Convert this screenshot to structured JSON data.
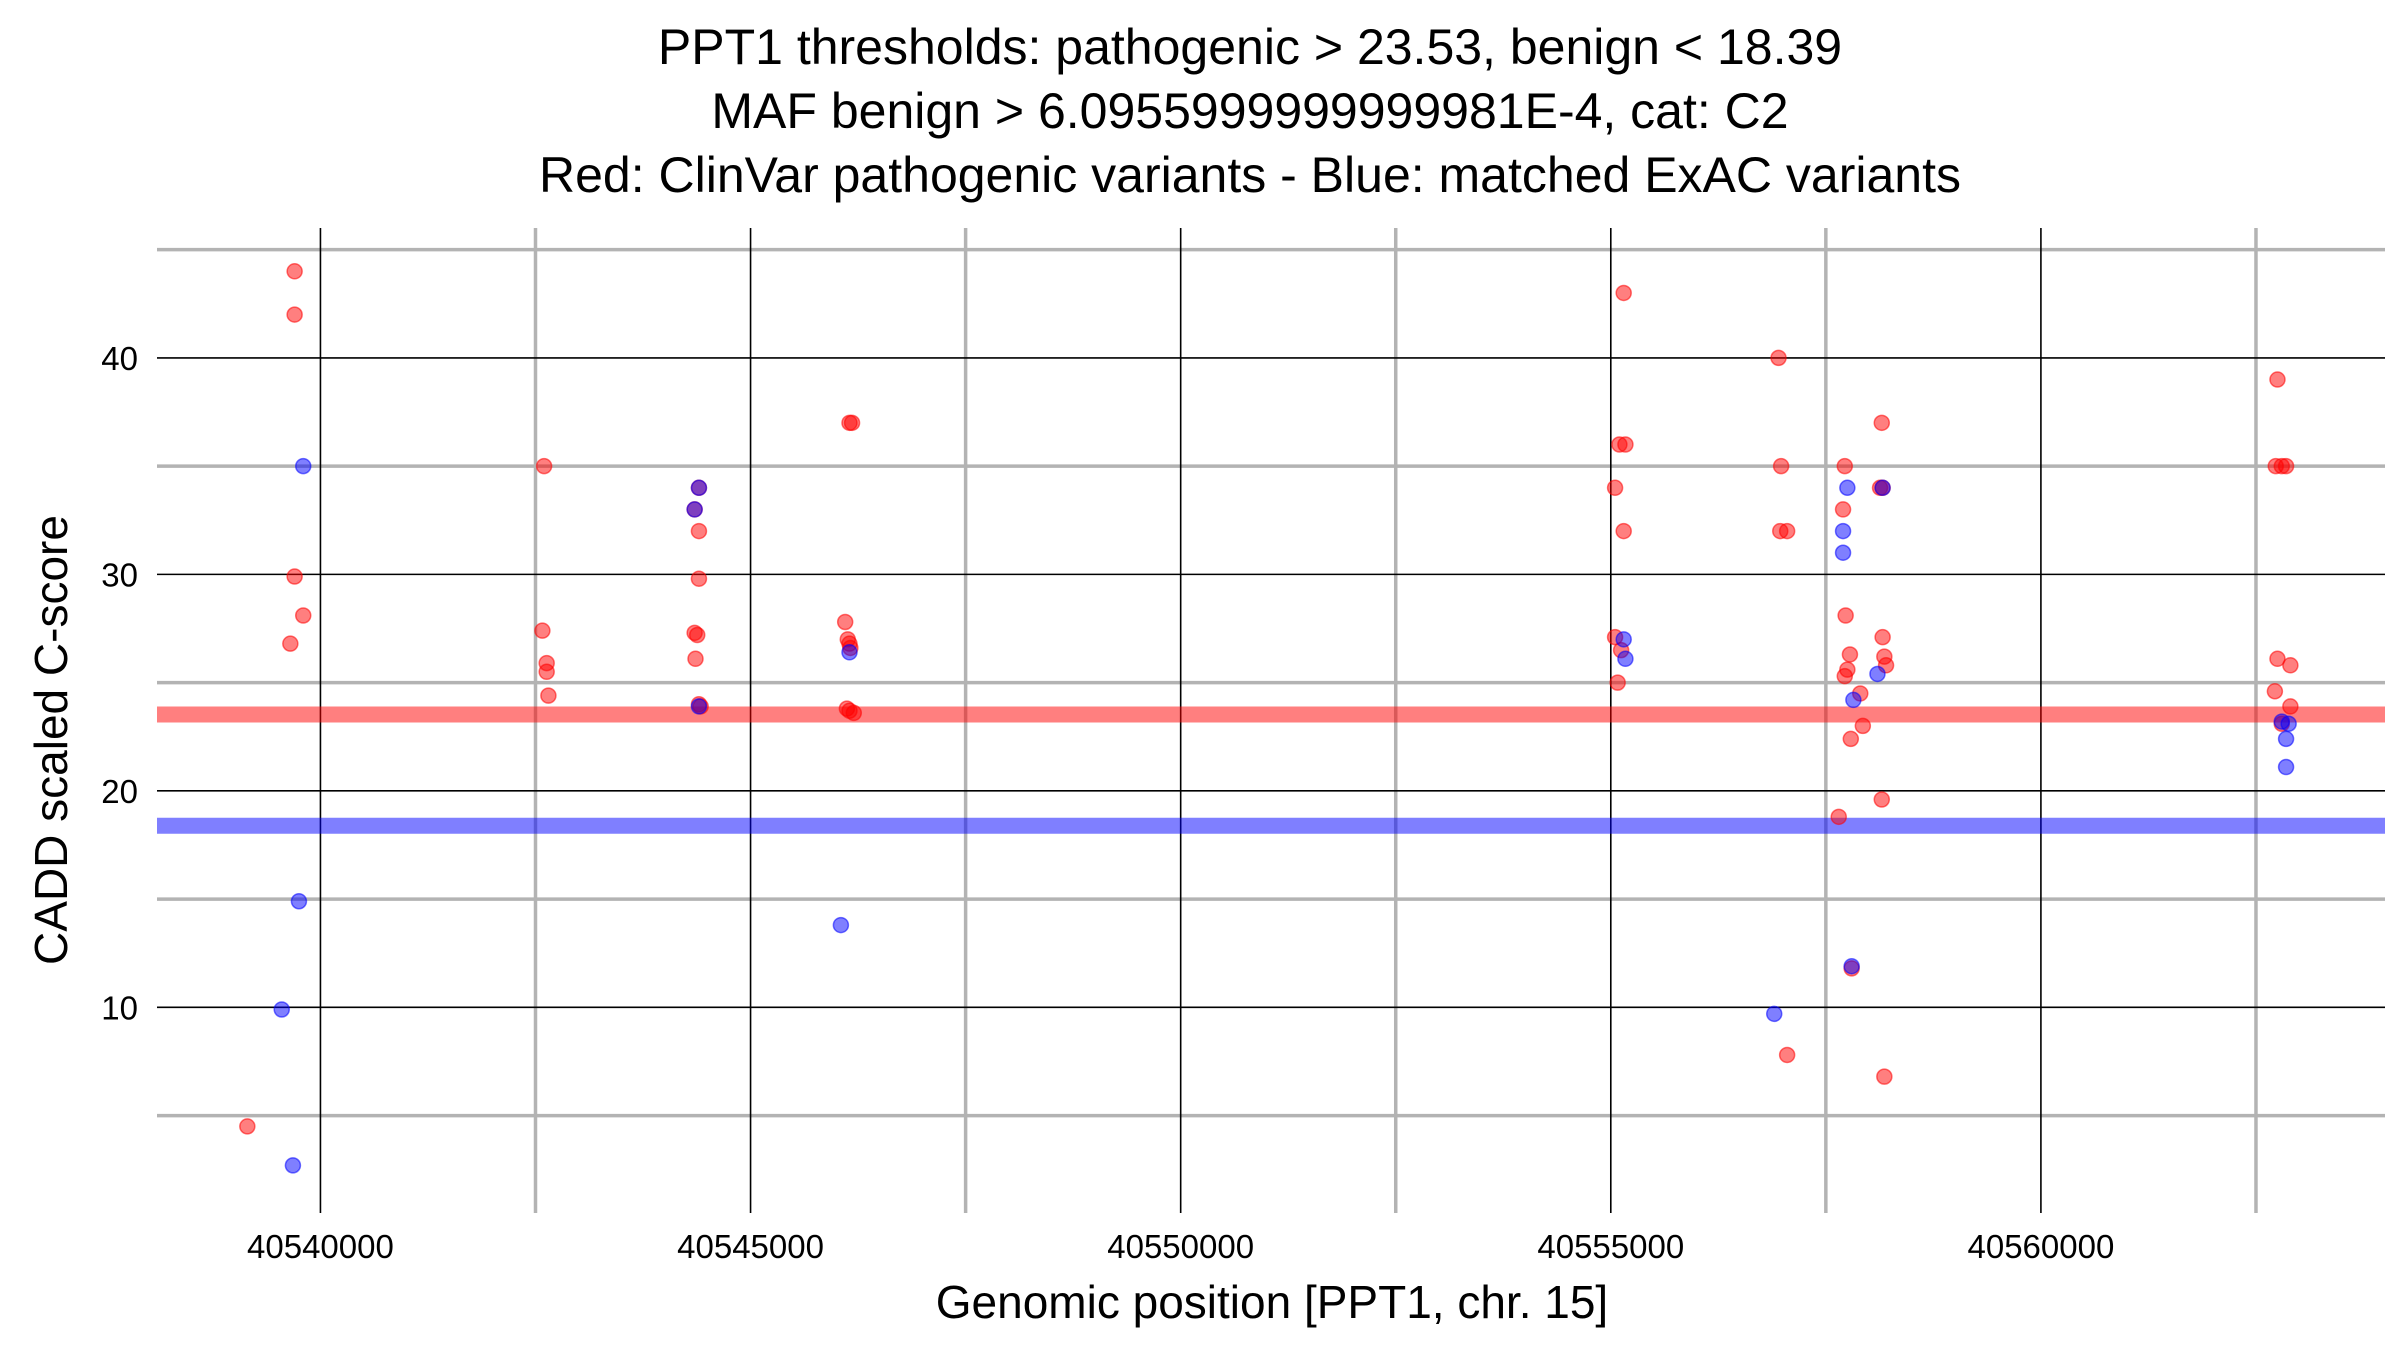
{
  "chart_data": {
    "type": "scatter",
    "title": [
      "PPT1 thresholds: pathogenic > 23.53, benign < 18.39",
      "MAF benign > 6.0955999999999981E-4, cat: C2",
      "Red: ClinVar pathogenic variants - Blue: matched ExAC variants"
    ],
    "xlabel": "Genomic position [PPT1, chr. 15]",
    "ylabel": "CADD scaled C-score",
    "xlim": [
      40538100,
      40564000
    ],
    "ylim": [
      0.5,
      46
    ],
    "x_ticks": [
      40540000,
      40545000,
      40550000,
      40555000,
      40560000
    ],
    "x_tick_labels": [
      "40540000",
      "40545000",
      "40550000",
      "40555000",
      "40560000"
    ],
    "x_minor_ticks": [
      40542500,
      40547500,
      40552500,
      40557500,
      40562500
    ],
    "y_ticks": [
      10,
      20,
      30,
      40
    ],
    "y_tick_labels": [
      "10",
      "20",
      "30",
      "40"
    ],
    "y_minor_ticks": [
      5,
      15,
      25,
      35,
      45
    ],
    "colors": {
      "pathogenic": "#ff0000",
      "benign": "#0000ff",
      "major_grid": "#000000",
      "minor_grid": "#b3b3b3"
    },
    "thresholds": [
      {
        "name": "pathogenic",
        "value": 23.53,
        "color": "#ff0000"
      },
      {
        "name": "benign",
        "value": 18.39,
        "color": "#0000ff"
      }
    ],
    "series": [
      {
        "name": "ClinVar pathogenic variants",
        "color": "#ff0000",
        "points": [
          [
            40539700,
            44
          ],
          [
            40539700,
            42
          ],
          [
            40539700,
            29.9
          ],
          [
            40539800,
            28.1
          ],
          [
            40539650,
            26.8
          ],
          [
            40539150,
            4.5
          ],
          [
            40542600,
            35
          ],
          [
            40542580,
            27.4
          ],
          [
            40542630,
            25.9
          ],
          [
            40542630,
            25.5
          ],
          [
            40542650,
            24.4
          ],
          [
            40544400,
            34
          ],
          [
            40544350,
            33
          ],
          [
            40544400,
            32
          ],
          [
            40544400,
            29.8
          ],
          [
            40544350,
            27.3
          ],
          [
            40544380,
            27.2
          ],
          [
            40544360,
            26.1
          ],
          [
            40544400,
            24
          ],
          [
            40544420,
            23.9
          ],
          [
            40546150,
            37
          ],
          [
            40546180,
            37
          ],
          [
            40546100,
            27.8
          ],
          [
            40546130,
            27
          ],
          [
            40546150,
            26.8
          ],
          [
            40546160,
            26.6
          ],
          [
            40546120,
            23.8
          ],
          [
            40546200,
            23.6
          ],
          [
            40546150,
            23.7
          ],
          [
            40555150,
            43
          ],
          [
            40555100,
            36
          ],
          [
            40555170,
            36
          ],
          [
            40555050,
            34
          ],
          [
            40555150,
            32
          ],
          [
            40555050,
            27.1
          ],
          [
            40555120,
            26.5
          ],
          [
            40555080,
            25
          ],
          [
            40556950,
            40
          ],
          [
            40556980,
            35
          ],
          [
            40556970,
            32
          ],
          [
            40557050,
            32
          ],
          [
            40557050,
            7.8
          ],
          [
            40557720,
            35
          ],
          [
            40557700,
            33
          ],
          [
            40557730,
            28.1
          ],
          [
            40557780,
            26.3
          ],
          [
            40557750,
            25.6
          ],
          [
            40557720,
            25.3
          ],
          [
            40557900,
            24.5
          ],
          [
            40557930,
            23
          ],
          [
            40557790,
            22.4
          ],
          [
            40557650,
            18.8
          ],
          [
            40557800,
            11.8
          ],
          [
            40558150,
            37
          ],
          [
            40558130,
            34
          ],
          [
            40558160,
            34
          ],
          [
            40558160,
            27.1
          ],
          [
            40558180,
            26.2
          ],
          [
            40558200,
            25.8
          ],
          [
            40558150,
            19.6
          ],
          [
            40558180,
            6.8
          ],
          [
            40562750,
            39
          ],
          [
            40562730,
            35
          ],
          [
            40562800,
            35
          ],
          [
            40562850,
            35
          ],
          [
            40562750,
            26.1
          ],
          [
            40562900,
            25.8
          ],
          [
            40562720,
            24.6
          ],
          [
            40562900,
            23.9
          ],
          [
            40562800,
            23.1
          ]
        ]
      },
      {
        "name": "matched ExAC variants",
        "color": "#0000ff",
        "points": [
          [
            40539800,
            35
          ],
          [
            40539750,
            14.9
          ],
          [
            40539550,
            9.9
          ],
          [
            40539680,
            2.7
          ],
          [
            40544400,
            34
          ],
          [
            40544350,
            33
          ],
          [
            40544400,
            23.9
          ],
          [
            40546150,
            26.4
          ],
          [
            40546050,
            13.8
          ],
          [
            40555150,
            27
          ],
          [
            40555170,
            26.1
          ],
          [
            40556900,
            9.7
          ],
          [
            40557750,
            34
          ],
          [
            40557700,
            32
          ],
          [
            40557700,
            31
          ],
          [
            40557820,
            24.2
          ],
          [
            40557800,
            11.9
          ],
          [
            40558160,
            34
          ],
          [
            40558100,
            25.4
          ],
          [
            40562800,
            23.2
          ],
          [
            40562880,
            23.1
          ],
          [
            40562850,
            22.4
          ],
          [
            40562850,
            21.1
          ]
        ]
      }
    ]
  }
}
